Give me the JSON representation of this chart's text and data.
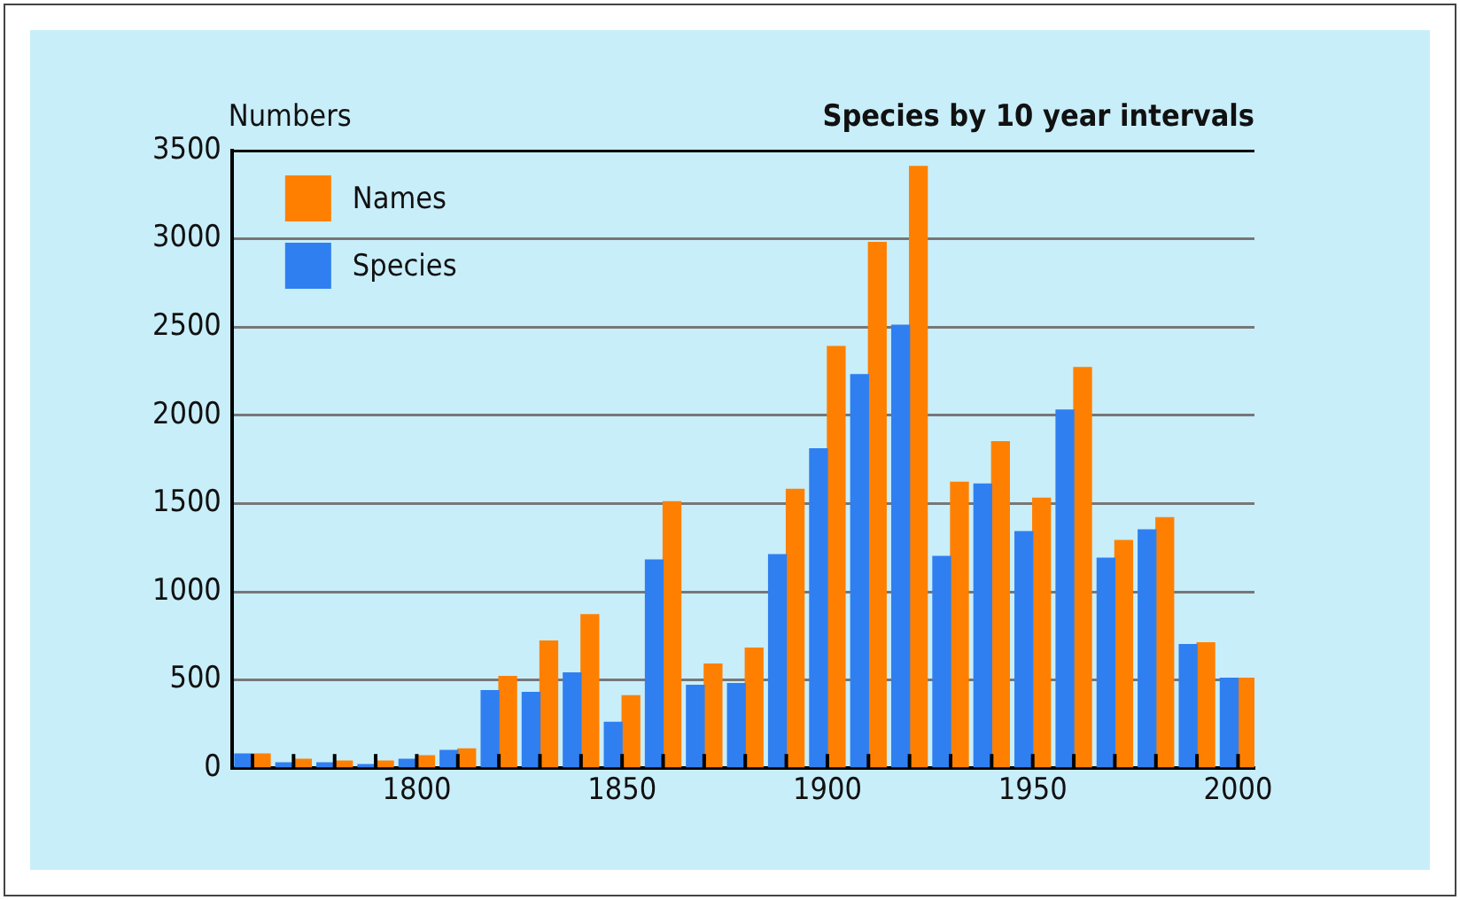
{
  "chart_data": {
    "type": "bar",
    "title": "Species by 10 year intervals",
    "ylabel": "Numbers",
    "x": [
      1760,
      1770,
      1780,
      1790,
      1800,
      1810,
      1820,
      1830,
      1840,
      1850,
      1860,
      1870,
      1880,
      1890,
      1900,
      1910,
      1920,
      1930,
      1940,
      1950,
      1960,
      1970,
      1980,
      1990,
      2000
    ],
    "series": [
      {
        "name": "Species",
        "color": "#2f7ff0",
        "values": [
          80,
          30,
          30,
          20,
          50,
          100,
          440,
          430,
          540,
          260,
          1180,
          470,
          480,
          1210,
          1810,
          2230,
          2510,
          1200,
          1610,
          1340,
          2030,
          1190,
          1350,
          700,
          510
        ]
      },
      {
        "name": "Names",
        "color": "#ff8000",
        "values": [
          80,
          50,
          40,
          40,
          70,
          110,
          520,
          720,
          870,
          410,
          1510,
          590,
          680,
          1580,
          2390,
          2980,
          3410,
          1620,
          1850,
          1530,
          2270,
          1290,
          1420,
          710,
          510
        ]
      }
    ],
    "xlim": [
      1755,
      2004
    ],
    "xticks": [
      1800,
      1850,
      1900,
      1950,
      2000
    ],
    "ylim": [
      0,
      3500
    ],
    "yticks": [
      0,
      500,
      1000,
      1500,
      2000,
      2500,
      3000,
      3500
    ],
    "grid": "y",
    "legend": "top left"
  }
}
